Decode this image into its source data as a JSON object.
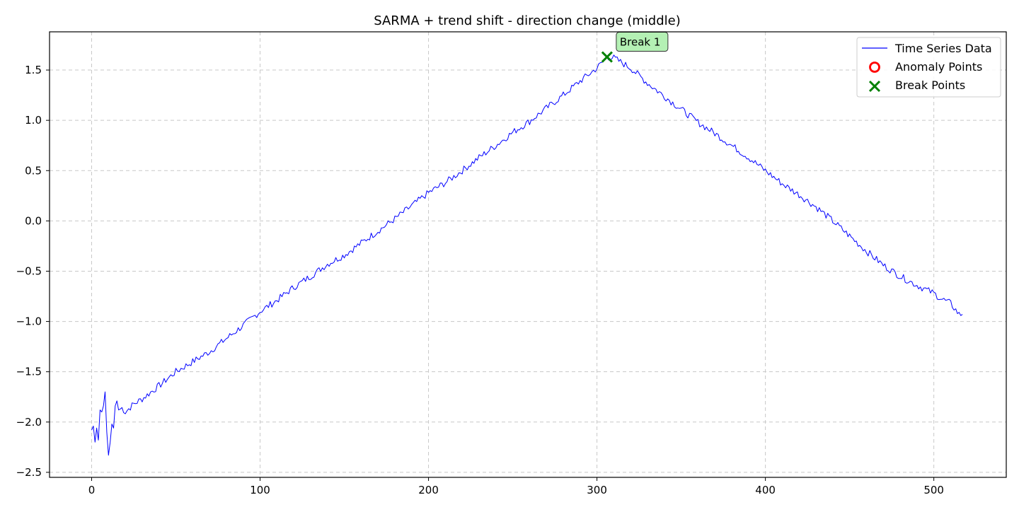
{
  "chart_data": {
    "type": "line",
    "title": "SARMA + trend shift - direction change (middle)",
    "xlabel": "",
    "ylabel": "",
    "xlim": [
      -25,
      543
    ],
    "ylim": [
      -2.55,
      1.88
    ],
    "xticks": [
      0,
      100,
      200,
      300,
      400,
      500
    ],
    "xtick_labels": [
      "0",
      "100",
      "200",
      "300",
      "400",
      "500"
    ],
    "yticks": [
      -2.5,
      -2.0,
      -1.5,
      -1.0,
      -0.5,
      0.0,
      0.5,
      1.0,
      1.5
    ],
    "ytick_labels": [
      "−2.5",
      "−2.0",
      "−1.5",
      "−1.0",
      "−0.5",
      "0.0",
      "0.5",
      "1.0",
      "1.5"
    ],
    "grid": true,
    "legend_position": "top-right",
    "legend": [
      {
        "label": "Time Series Data",
        "marker": "line",
        "color": "#0000ff"
      },
      {
        "label": "Anomaly Points",
        "marker": "circle",
        "color": "#ff0000"
      },
      {
        "label": "Break Points",
        "marker": "x",
        "color": "#008000"
      }
    ],
    "series": [
      {
        "name": "Time Series Data",
        "color": "#0000ff",
        "anchors": [
          [
            0,
            -2.08
          ],
          [
            1,
            -2.04
          ],
          [
            2,
            -2.2
          ],
          [
            3,
            -2.06
          ],
          [
            4,
            -2.18
          ],
          [
            5,
            -1.88
          ],
          [
            6,
            -1.9
          ],
          [
            7,
            -1.84
          ],
          [
            8,
            -1.7
          ],
          [
            9,
            -2.1
          ],
          [
            10,
            -2.33
          ],
          [
            11,
            -2.2
          ],
          [
            12,
            -2.02
          ],
          [
            13,
            -2.06
          ],
          [
            14,
            -1.84
          ],
          [
            15,
            -1.79
          ],
          [
            16,
            -1.88
          ],
          [
            18,
            -1.86
          ],
          [
            20,
            -1.9
          ],
          [
            25,
            -1.82
          ],
          [
            30,
            -1.77
          ],
          [
            40,
            -1.64
          ],
          [
            50,
            -1.5
          ],
          [
            60,
            -1.4
          ],
          [
            70,
            -1.3
          ],
          [
            80,
            -1.17
          ],
          [
            90,
            -1.04
          ],
          [
            100,
            -0.9
          ],
          [
            110,
            -0.79
          ],
          [
            120,
            -0.66
          ],
          [
            130,
            -0.55
          ],
          [
            140,
            -0.43
          ],
          [
            150,
            -0.34
          ],
          [
            160,
            -0.22
          ],
          [
            170,
            -0.1
          ],
          [
            180,
            0.02
          ],
          [
            190,
            0.15
          ],
          [
            200,
            0.28
          ],
          [
            210,
            0.38
          ],
          [
            220,
            0.5
          ],
          [
            230,
            0.63
          ],
          [
            240,
            0.75
          ],
          [
            250,
            0.88
          ],
          [
            260,
            0.99
          ],
          [
            270,
            1.12
          ],
          [
            280,
            1.25
          ],
          [
            290,
            1.39
          ],
          [
            300,
            1.52
          ],
          [
            306,
            1.63
          ],
          [
            310,
            1.62
          ],
          [
            320,
            1.52
          ],
          [
            330,
            1.37
          ],
          [
            340,
            1.24
          ],
          [
            350,
            1.11
          ],
          [
            360,
            0.98
          ],
          [
            370,
            0.87
          ],
          [
            380,
            0.75
          ],
          [
            390,
            0.63
          ],
          [
            400,
            0.5
          ],
          [
            410,
            0.37
          ],
          [
            420,
            0.26
          ],
          [
            430,
            0.14
          ],
          [
            440,
            0.0
          ],
          [
            450,
            -0.15
          ],
          [
            460,
            -0.3
          ],
          [
            470,
            -0.44
          ],
          [
            480,
            -0.55
          ],
          [
            490,
            -0.64
          ],
          [
            500,
            -0.72
          ],
          [
            505,
            -0.78
          ],
          [
            510,
            -0.82
          ],
          [
            515,
            -0.93
          ],
          [
            517,
            -0.93
          ]
        ]
      }
    ],
    "anomaly_points": [],
    "break_points": [
      {
        "x": 306,
        "y": 1.63,
        "label": "Break 1",
        "color": "#008000"
      }
    ]
  }
}
